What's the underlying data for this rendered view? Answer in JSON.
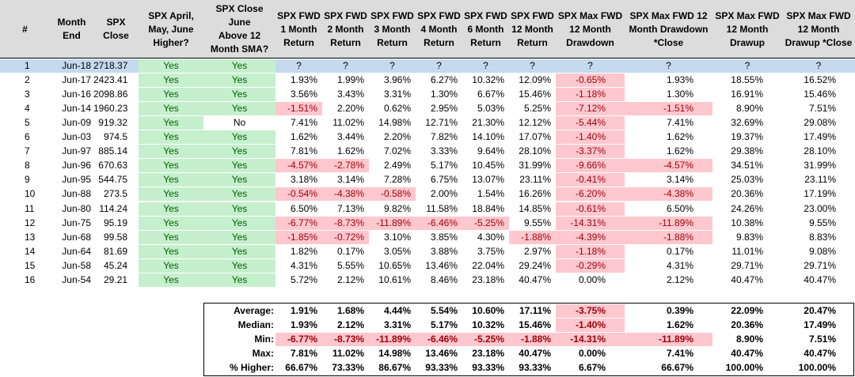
{
  "header": {
    "cols": [
      "#",
      "Month\nEnd",
      "SPX\nClose",
      "SPX April,\nMay, June\nHigher?",
      "SPX Close June\nAbove 12\nMonth SMA?",
      "SPX FWD\n1 Month\nReturn",
      "SPX FWD\n2 Month\nReturn",
      "SPX FWD\n3 Month\nReturn",
      "SPX FWD\n4 Month\nReturn",
      "SPX FWD\n6 Month\nReturn",
      "SPX FWD\n12 Month\nReturn",
      "SPX Max FWD\n12 Month\nDrawdown",
      "SPX Max FWD 12\nMonth Drawdown\n*Close",
      "SPX Max FWD\n12 Month\nDrawup",
      "SPX Max FWD\n12 Month\nDrawup *Close"
    ]
  },
  "rows": [
    {
      "n": "1",
      "month": "Jun-18",
      "close": "2718.37",
      "q1": "Yes",
      "q2": "Yes",
      "v": [
        "?",
        "?",
        "?",
        "?",
        "?",
        "?",
        "?",
        "?",
        "?",
        "?"
      ],
      "neg": [
        false,
        false,
        false,
        false,
        false,
        false,
        false,
        false,
        false,
        false
      ]
    },
    {
      "n": "2",
      "month": "Jun-17",
      "close": "2423.41",
      "q1": "Yes",
      "q2": "Yes",
      "v": [
        "1.93%",
        "1.99%",
        "3.96%",
        "6.27%",
        "10.32%",
        "12.09%",
        "-0.65%",
        "1.93%",
        "18.55%",
        "16.52%"
      ],
      "neg": [
        false,
        false,
        false,
        false,
        false,
        false,
        true,
        false,
        false,
        false
      ]
    },
    {
      "n": "3",
      "month": "Jun-16",
      "close": "2098.86",
      "q1": "Yes",
      "q2": "Yes",
      "v": [
        "3.56%",
        "3.43%",
        "3.31%",
        "1.30%",
        "6.67%",
        "15.46%",
        "-1.18%",
        "1.30%",
        "16.91%",
        "15.46%"
      ],
      "neg": [
        false,
        false,
        false,
        false,
        false,
        false,
        true,
        false,
        false,
        false
      ]
    },
    {
      "n": "4",
      "month": "Jun-14",
      "close": "1960.23",
      "q1": "Yes",
      "q2": "Yes",
      "v": [
        "-1.51%",
        "2.20%",
        "0.62%",
        "2.95%",
        "5.03%",
        "5.25%",
        "-7.12%",
        "-1.51%",
        "8.90%",
        "7.51%"
      ],
      "neg": [
        true,
        false,
        false,
        false,
        false,
        false,
        true,
        true,
        false,
        false
      ]
    },
    {
      "n": "5",
      "month": "Jun-09",
      "close": "919.32",
      "q1": "Yes",
      "q2": "No",
      "v": [
        "7.41%",
        "11.02%",
        "14.98%",
        "12.71%",
        "21.30%",
        "12.12%",
        "-5.44%",
        "7.41%",
        "32.69%",
        "29.08%"
      ],
      "neg": [
        false,
        false,
        false,
        false,
        false,
        false,
        true,
        false,
        false,
        false
      ]
    },
    {
      "n": "6",
      "month": "Jun-03",
      "close": "974.5",
      "q1": "Yes",
      "q2": "Yes",
      "v": [
        "1.62%",
        "3.44%",
        "2.20%",
        "7.82%",
        "14.10%",
        "17.07%",
        "-1.40%",
        "1.62%",
        "19.37%",
        "17.49%"
      ],
      "neg": [
        false,
        false,
        false,
        false,
        false,
        false,
        true,
        false,
        false,
        false
      ]
    },
    {
      "n": "7",
      "month": "Jun-97",
      "close": "885.14",
      "q1": "Yes",
      "q2": "Yes",
      "v": [
        "7.81%",
        "1.62%",
        "7.02%",
        "3.33%",
        "9.64%",
        "28.10%",
        "-3.37%",
        "1.62%",
        "29.38%",
        "28.10%"
      ],
      "neg": [
        false,
        false,
        false,
        false,
        false,
        false,
        true,
        false,
        false,
        false
      ]
    },
    {
      "n": "8",
      "month": "Jun-96",
      "close": "670.63",
      "q1": "Yes",
      "q2": "Yes",
      "v": [
        "-4.57%",
        "-2.78%",
        "2.49%",
        "5.17%",
        "10.45%",
        "31.99%",
        "-9.66%",
        "-4.57%",
        "34.51%",
        "31.99%"
      ],
      "neg": [
        true,
        true,
        false,
        false,
        false,
        false,
        true,
        true,
        false,
        false
      ]
    },
    {
      "n": "9",
      "month": "Jun-95",
      "close": "544.75",
      "q1": "Yes",
      "q2": "Yes",
      "v": [
        "3.18%",
        "3.14%",
        "7.28%",
        "6.75%",
        "13.07%",
        "23.11%",
        "-0.41%",
        "3.14%",
        "25.03%",
        "23.11%"
      ],
      "neg": [
        false,
        false,
        false,
        false,
        false,
        false,
        true,
        false,
        false,
        false
      ]
    },
    {
      "n": "10",
      "month": "Jun-88",
      "close": "273.5",
      "q1": "Yes",
      "q2": "Yes",
      "v": [
        "-0.54%",
        "-4.38%",
        "-0.58%",
        "2.00%",
        "1.54%",
        "16.26%",
        "-6.20%",
        "-4.38%",
        "20.36%",
        "17.19%"
      ],
      "neg": [
        true,
        true,
        true,
        false,
        false,
        false,
        true,
        true,
        false,
        false
      ]
    },
    {
      "n": "11",
      "month": "Jun-80",
      "close": "114.24",
      "q1": "Yes",
      "q2": "Yes",
      "v": [
        "6.50%",
        "7.13%",
        "9.82%",
        "11.58%",
        "18.84%",
        "14.85%",
        "-0.61%",
        "6.50%",
        "24.26%",
        "23.00%"
      ],
      "neg": [
        false,
        false,
        false,
        false,
        false,
        false,
        true,
        false,
        false,
        false
      ]
    },
    {
      "n": "12",
      "month": "Jun-75",
      "close": "95.19",
      "q1": "Yes",
      "q2": "Yes",
      "v": [
        "-6.77%",
        "-8.73%",
        "-11.89%",
        "-6.46%",
        "-5.25%",
        "9.55%",
        "-14.31%",
        "-11.89%",
        "10.38%",
        "9.55%"
      ],
      "neg": [
        true,
        true,
        true,
        true,
        true,
        false,
        true,
        true,
        false,
        false
      ]
    },
    {
      "n": "13",
      "month": "Jun-68",
      "close": "99.58",
      "q1": "Yes",
      "q2": "Yes",
      "v": [
        "-1.85%",
        "-0.72%",
        "3.10%",
        "3.85%",
        "4.30%",
        "-1.88%",
        "-4.39%",
        "-1.88%",
        "9.83%",
        "8.83%"
      ],
      "neg": [
        true,
        true,
        false,
        false,
        false,
        true,
        true,
        true,
        false,
        false
      ]
    },
    {
      "n": "14",
      "month": "Jun-64",
      "close": "81.69",
      "q1": "Yes",
      "q2": "Yes",
      "v": [
        "1.82%",
        "0.17%",
        "3.05%",
        "3.88%",
        "3.75%",
        "2.97%",
        "-1.18%",
        "0.17%",
        "11.01%",
        "9.08%"
      ],
      "neg": [
        false,
        false,
        false,
        false,
        false,
        false,
        true,
        false,
        false,
        false
      ]
    },
    {
      "n": "15",
      "month": "Jun-58",
      "close": "45.24",
      "q1": "Yes",
      "q2": "Yes",
      "v": [
        "4.31%",
        "5.55%",
        "10.65%",
        "13.46%",
        "22.04%",
        "29.24%",
        "-0.29%",
        "4.31%",
        "29.71%",
        "29.71%"
      ],
      "neg": [
        false,
        false,
        false,
        false,
        false,
        false,
        true,
        false,
        false,
        false
      ]
    },
    {
      "n": "16",
      "month": "Jun-54",
      "close": "29.21",
      "q1": "Yes",
      "q2": "Yes",
      "v": [
        "5.72%",
        "2.12%",
        "10.61%",
        "8.46%",
        "23.18%",
        "40.47%",
        "0.00%",
        "2.12%",
        "40.47%",
        "40.47%"
      ],
      "neg": [
        false,
        false,
        false,
        false,
        false,
        false,
        false,
        false,
        false,
        false
      ]
    }
  ],
  "summary": [
    {
      "label": "Average:",
      "v": [
        "1.91%",
        "1.68%",
        "4.44%",
        "5.54%",
        "10.60%",
        "17.11%",
        "-3.75%",
        "0.39%",
        "22.09%",
        "20.47%"
      ],
      "neg": [
        false,
        false,
        false,
        false,
        false,
        false,
        true,
        false,
        false,
        false
      ]
    },
    {
      "label": "Median:",
      "v": [
        "1.93%",
        "2.12%",
        "3.31%",
        "5.17%",
        "10.32%",
        "15.46%",
        "-1.40%",
        "1.62%",
        "20.36%",
        "17.49%"
      ],
      "neg": [
        false,
        false,
        false,
        false,
        false,
        false,
        true,
        false,
        false,
        false
      ]
    },
    {
      "label": "Min:",
      "v": [
        "-6.77%",
        "-8.73%",
        "-11.89%",
        "-6.46%",
        "-5.25%",
        "-1.88%",
        "-14.31%",
        "-11.89%",
        "8.90%",
        "7.51%"
      ],
      "neg": [
        true,
        true,
        true,
        true,
        true,
        true,
        true,
        true,
        false,
        false
      ]
    },
    {
      "label": "Max:",
      "v": [
        "7.81%",
        "11.02%",
        "14.98%",
        "13.46%",
        "23.18%",
        "40.47%",
        "0.00%",
        "7.41%",
        "40.47%",
        "40.47%"
      ],
      "neg": [
        false,
        false,
        false,
        false,
        false,
        false,
        false,
        false,
        false,
        false
      ]
    },
    {
      "label": "% Higher:",
      "v": [
        "66.67%",
        "73.33%",
        "86.67%",
        "93.33%",
        "93.33%",
        "93.33%",
        "6.67%",
        "66.67%",
        "100.00%",
        "100.00%"
      ],
      "neg": [
        false,
        false,
        false,
        false,
        false,
        false,
        false,
        false,
        false,
        false
      ]
    }
  ],
  "colors": {
    "header_bg": "#dcdcdc",
    "question_row_bg": "#c5d9ef",
    "yes_bg": "#c6efce",
    "yes_text": "#006100",
    "neg_bg": "#ffc7ce",
    "neg_text": "#9c0006"
  }
}
